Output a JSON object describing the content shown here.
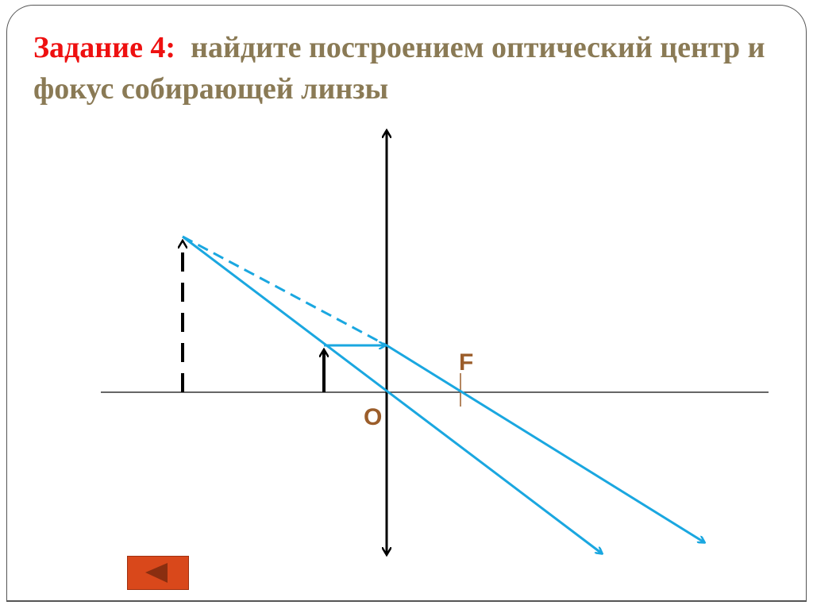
{
  "slide": {
    "title_prefix": "Задание 4:",
    "title_text": "найдите построением оптический центр и фокус собирающей линзы"
  },
  "diagram": {
    "labels": {
      "focus": "F",
      "center": "O"
    },
    "colors": {
      "ray": "#1aa7e0",
      "label": "#9b5d2a",
      "title_accent": "#ee1010",
      "title": "#8a7a55",
      "back_button": "#d9481b"
    }
  },
  "nav": {
    "back_icon": "triangle-left-icon"
  }
}
